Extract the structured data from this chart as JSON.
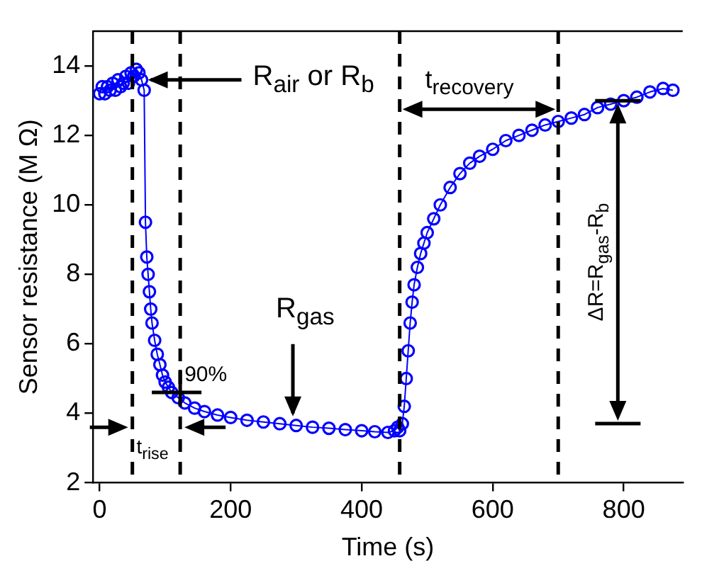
{
  "chart_data": {
    "type": "line",
    "xlabel": "Time (s)",
    "ylabel": "Sensor resistance (M Ω)",
    "xlim": [
      -10,
      890
    ],
    "xticks": [
      0,
      200,
      400,
      600,
      800
    ],
    "ylim": [
      2,
      15
    ],
    "yticks": [
      2,
      4,
      6,
      8,
      10,
      12,
      14
    ],
    "grid": false,
    "legend": false,
    "marker": "circle",
    "line_style": "solid",
    "series": [
      {
        "color": "#0000ff",
        "x": [
          0,
          4,
          8,
          12,
          16,
          20,
          24,
          28,
          32,
          36,
          40,
          44,
          48,
          52,
          56,
          60,
          64,
          68,
          70,
          72,
          74,
          76,
          78,
          80,
          84,
          88,
          92,
          96,
          100,
          105,
          110,
          120,
          130,
          145,
          160,
          180,
          200,
          225,
          250,
          275,
          300,
          325,
          350,
          375,
          400,
          420,
          440,
          450,
          455,
          458,
          462,
          465,
          468,
          471,
          474,
          477,
          480,
          485,
          490,
          495,
          500,
          510,
          520,
          535,
          550,
          565,
          580,
          600,
          620,
          640,
          660,
          680,
          700,
          720,
          740,
          760,
          780,
          800,
          820,
          840,
          860,
          875
        ],
        "values": [
          13.2,
          13.4,
          13.2,
          13.4,
          13.3,
          13.5,
          13.3,
          13.6,
          13.4,
          13.5,
          13.7,
          13.5,
          13.8,
          13.7,
          13.9,
          13.8,
          13.6,
          13.3,
          9.5,
          8.5,
          8.0,
          7.5,
          7.0,
          6.6,
          6.1,
          5.7,
          5.4,
          5.1,
          4.9,
          4.75,
          4.6,
          4.45,
          4.3,
          4.15,
          4.05,
          3.95,
          3.88,
          3.8,
          3.75,
          3.7,
          3.65,
          3.6,
          3.57,
          3.53,
          3.5,
          3.47,
          3.45,
          3.5,
          3.6,
          3.5,
          3.7,
          4.2,
          5.0,
          5.8,
          6.6,
          7.2,
          7.7,
          8.2,
          8.6,
          8.9,
          9.2,
          9.6,
          10.0,
          10.5,
          10.9,
          11.2,
          11.4,
          11.6,
          11.85,
          12.0,
          12.15,
          12.3,
          12.4,
          12.5,
          12.6,
          12.8,
          12.9,
          13.0,
          13.1,
          13.25,
          13.35,
          13.3
        ]
      }
    ],
    "ref_lines": [
      {
        "axis": "x",
        "value": 50,
        "color": "#000000",
        "line_style": "dashed"
      },
      {
        "axis": "x",
        "value": 123,
        "color": "#000000",
        "line_style": "dashed"
      },
      {
        "axis": "x",
        "value": 458,
        "color": "#000000",
        "line_style": "dashed"
      },
      {
        "axis": "x",
        "value": 700,
        "color": "#000000",
        "line_style": "dashed"
      }
    ],
    "annotations": [
      {
        "text": "R$_{air}$ or R$_{b}$",
        "x": 65,
        "y": 13.6
      },
      {
        "text": "R$_{gas}$",
        "x": 295,
        "y": 3.75
      },
      {
        "text": "90%",
        "x": 123,
        "y": 4.6
      },
      "t$_{rise}$",
      "t$_{recovery}$",
      "ΔR=R$_{gas}$-R$_{b}$"
    ]
  }
}
